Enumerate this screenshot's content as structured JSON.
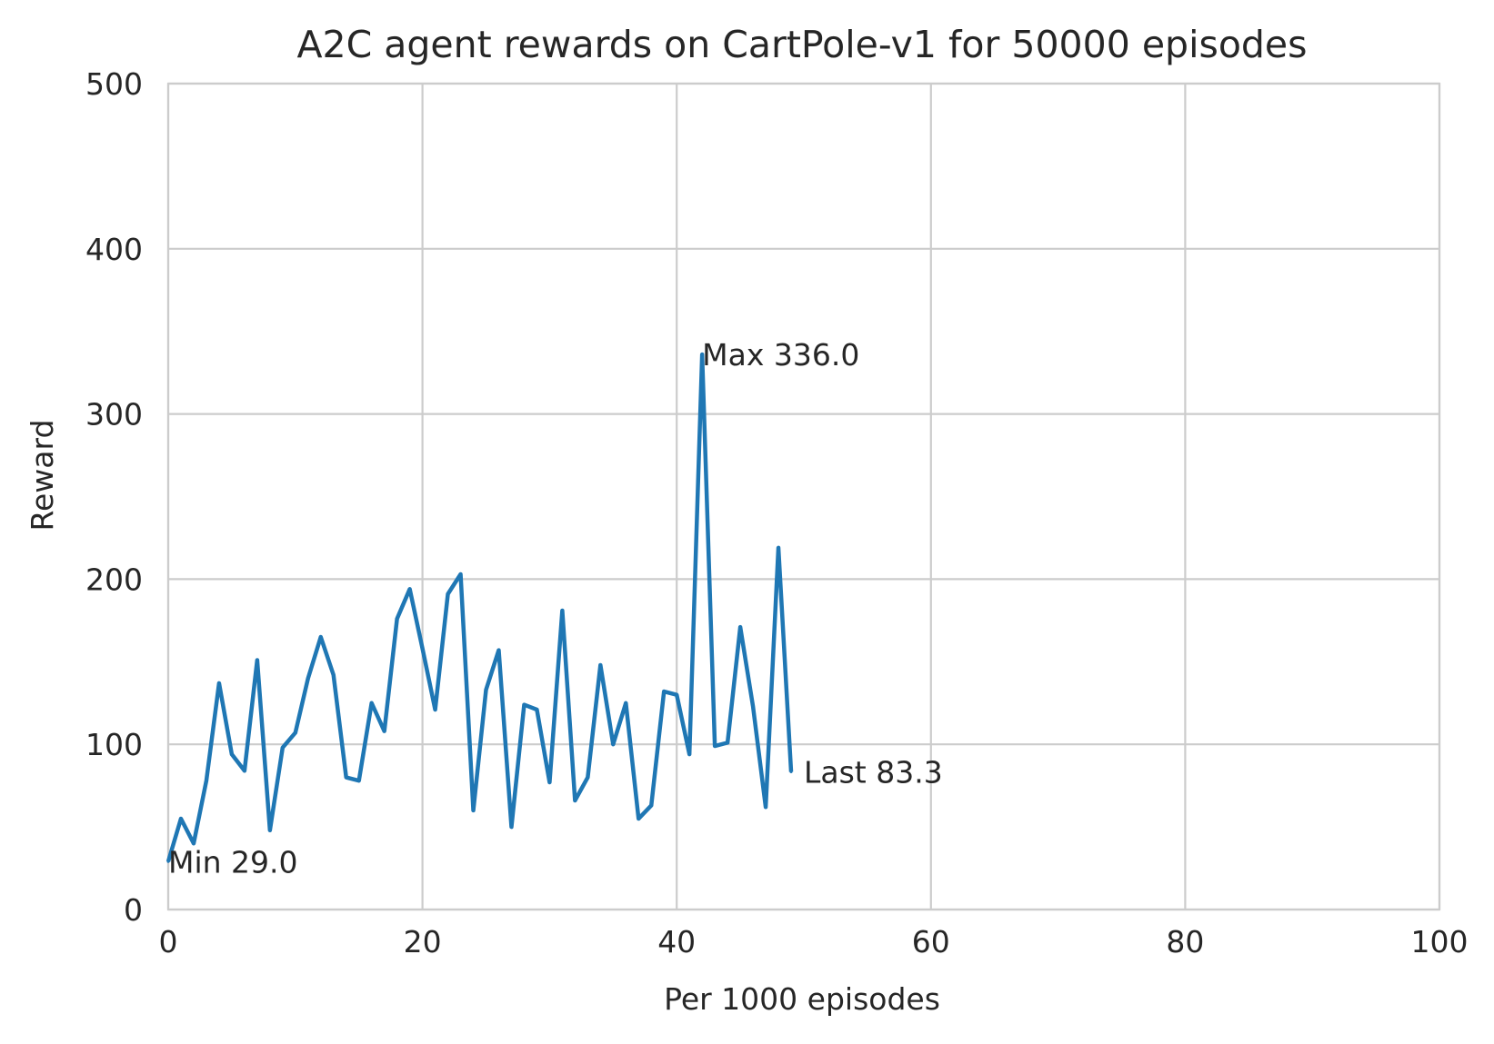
{
  "chart_data": {
    "type": "line",
    "title": "A2C agent rewards on CartPole-v1 for 50000 episodes",
    "xlabel": "Per 1000 episodes",
    "ylabel": "Reward",
    "xlim": [
      0,
      100
    ],
    "ylim": [
      0,
      500
    ],
    "xticks": [
      0,
      20,
      40,
      60,
      80,
      100
    ],
    "yticks": [
      0,
      100,
      200,
      300,
      400,
      500
    ],
    "xtick_labels": [
      "0",
      "20",
      "40",
      "60",
      "80",
      "100"
    ],
    "ytick_labels": [
      "0",
      "100",
      "200",
      "300",
      "400",
      "500"
    ],
    "grid": true,
    "color": "#1f77b4",
    "x": [
      0,
      1,
      2,
      3,
      4,
      5,
      6,
      7,
      8,
      9,
      10,
      11,
      12,
      13,
      14,
      15,
      16,
      17,
      18,
      19,
      20,
      21,
      22,
      23,
      24,
      25,
      26,
      27,
      28,
      29,
      30,
      31,
      32,
      33,
      34,
      35,
      36,
      37,
      38,
      39,
      40,
      41,
      42,
      43,
      44,
      45,
      46,
      47,
      48,
      49
    ],
    "values": [
      29,
      55,
      40,
      78,
      137,
      94,
      84,
      151,
      48,
      98,
      107,
      140,
      165,
      142,
      80,
      78,
      125,
      108,
      176,
      194,
      158,
      121,
      191,
      203,
      60,
      133,
      157,
      50,
      124,
      121,
      77,
      181,
      66,
      80,
      148,
      100,
      125,
      55,
      63,
      132,
      130,
      94,
      336,
      99,
      101,
      171,
      123,
      62,
      219,
      83.3
    ],
    "annotations": [
      {
        "text": "Min 29.0",
        "x": 0,
        "y": 29
      },
      {
        "text": "Max 336.0",
        "x": 42,
        "y": 336
      },
      {
        "text": "Last 83.3",
        "x": 50,
        "y": 83.3
      }
    ]
  }
}
